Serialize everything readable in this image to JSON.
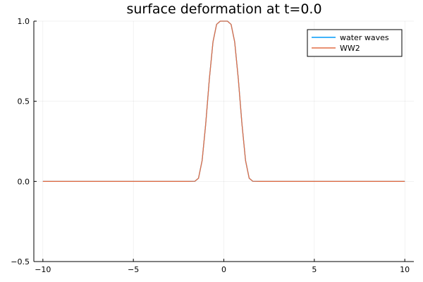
{
  "chart_data": {
    "type": "line",
    "title": "surface deformation at t=0.0",
    "xlabel": "",
    "ylabel": "",
    "xlim": [
      -10.5,
      10.5
    ],
    "ylim": [
      -0.5,
      1.0
    ],
    "xticks": [
      -10,
      -5,
      0,
      5,
      10
    ],
    "xtick_labels": [
      "−10",
      "−5",
      "0",
      "5",
      "10"
    ],
    "yticks": [
      -0.5,
      0.0,
      0.5,
      1.0
    ],
    "ytick_labels": [
      "−0.5",
      "0.0",
      "0.5",
      "1.0"
    ],
    "grid": true,
    "legend_position": "top-right",
    "x": [
      -10,
      -2,
      -1.6,
      -1.4,
      -1.2,
      -1.0,
      -0.8,
      -0.6,
      -0.4,
      -0.2,
      0,
      0.2,
      0.4,
      0.6,
      0.8,
      1.0,
      1.2,
      1.4,
      1.6,
      2,
      10
    ],
    "series": [
      {
        "name": "water waves",
        "color": "#009af9",
        "values": [
          0,
          0,
          0.001,
          0.02,
          0.13,
          0.36,
          0.64,
          0.87,
          0.98,
          1.0,
          1.0,
          1.0,
          0.98,
          0.87,
          0.64,
          0.36,
          0.13,
          0.02,
          0.001,
          0,
          0
        ]
      },
      {
        "name": "WW2",
        "color": "#e26f46",
        "values": [
          0,
          0,
          0.001,
          0.02,
          0.13,
          0.36,
          0.64,
          0.87,
          0.98,
          1.0,
          1.0,
          1.0,
          0.98,
          0.87,
          0.64,
          0.36,
          0.13,
          0.02,
          0.001,
          0,
          0
        ]
      }
    ]
  }
}
